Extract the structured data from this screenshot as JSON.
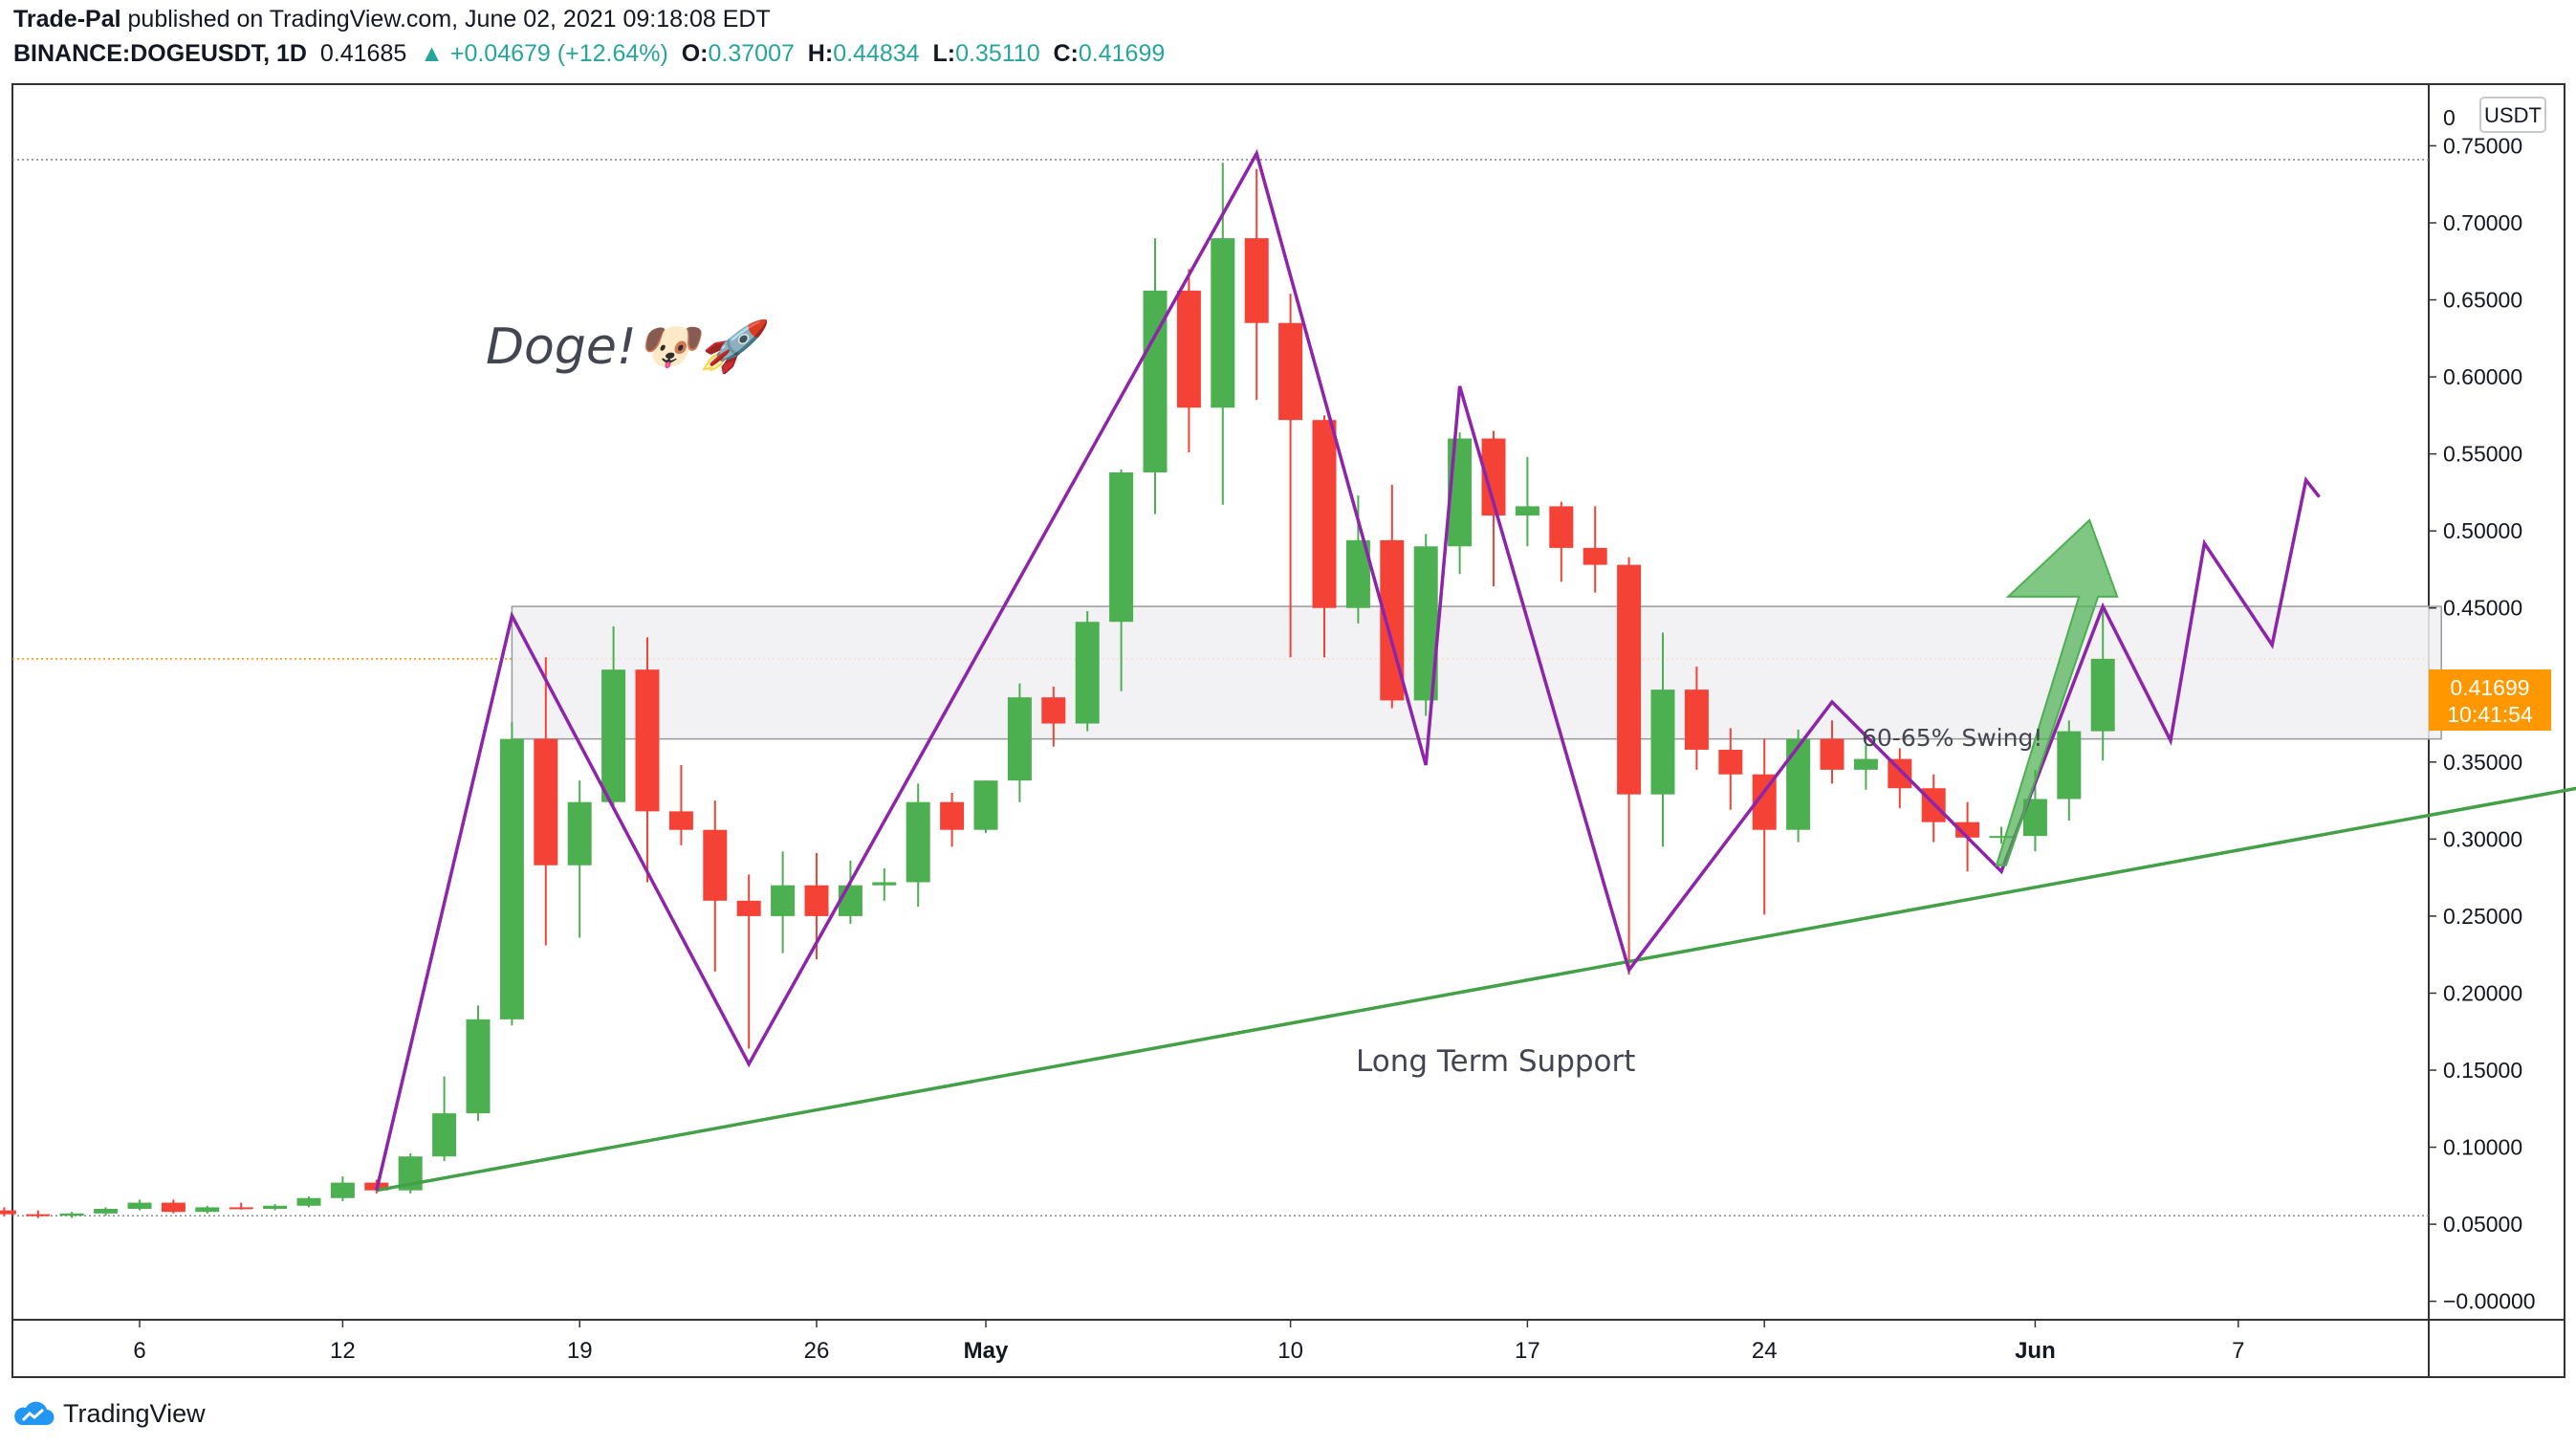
{
  "header": {
    "publisher": "Trade-Pal",
    "published_text": "published on TradingView.com, June 02, 2021 09:18:08 EDT",
    "symbol": "BINANCE:DOGEUSDT, 1D",
    "last": "0.41685",
    "change": "▲ +0.04679 (+12.64%)",
    "o_label": "O:",
    "o": "0.37007",
    "h_label": "H:",
    "h": "0.44834",
    "l_label": "L:",
    "l": "0.35110",
    "c_label": "C:",
    "c": "0.41699"
  },
  "branding": {
    "logo_text": "TradingView",
    "icon": "tradingview-cloud-icon"
  },
  "colors": {
    "up": "#4caf50",
    "down": "#f44336",
    "pattern": "#8e24aa",
    "support": "#43a047",
    "price_tag": "#ff9800",
    "box": "#f0f0f3"
  },
  "chart_data": {
    "type": "candlestick",
    "currency": "USDT",
    "x_ticks": [
      "6",
      "12",
      "19",
      "26",
      "May",
      "10",
      "17",
      "24",
      "Jun",
      "7"
    ],
    "y_ticks": [
      "0.75000",
      "0.70000",
      "0.65000",
      "0.60000",
      "0.55000",
      "0.50000",
      "0.45000",
      "0.35000",
      "0.30000",
      "0.25000",
      "0.20000",
      "0.15000",
      "0.10000",
      "0.05000",
      "−0.00000"
    ],
    "y_top_partial": "0",
    "ylim": [
      -0.012,
      0.79
    ],
    "price_tag": {
      "price": "0.41699",
      "countdown": "10:41:54",
      "value": 0.41699
    },
    "reference_lines": [
      0.741,
      0.0555
    ],
    "current_price_line": 0.41699,
    "candles": [
      {
        "date": "2021-04-02",
        "o": 0.059,
        "h": 0.061,
        "l": 0.055,
        "c": 0.0565
      },
      {
        "date": "2021-04-03",
        "o": 0.0565,
        "h": 0.059,
        "l": 0.054,
        "c": 0.0555
      },
      {
        "date": "2021-04-04",
        "o": 0.0555,
        "h": 0.058,
        "l": 0.054,
        "c": 0.057
      },
      {
        "date": "2021-04-05",
        "o": 0.057,
        "h": 0.061,
        "l": 0.0555,
        "c": 0.06
      },
      {
        "date": "2021-04-06",
        "o": 0.06,
        "h": 0.066,
        "l": 0.059,
        "c": 0.064
      },
      {
        "date": "2021-04-07",
        "o": 0.064,
        "h": 0.066,
        "l": 0.057,
        "c": 0.058
      },
      {
        "date": "2021-04-08",
        "o": 0.058,
        "h": 0.062,
        "l": 0.057,
        "c": 0.061
      },
      {
        "date": "2021-04-09",
        "o": 0.061,
        "h": 0.064,
        "l": 0.0595,
        "c": 0.06
      },
      {
        "date": "2021-04-10",
        "o": 0.06,
        "h": 0.063,
        "l": 0.059,
        "c": 0.062
      },
      {
        "date": "2021-04-11",
        "o": 0.062,
        "h": 0.068,
        "l": 0.061,
        "c": 0.067
      },
      {
        "date": "2021-04-12",
        "o": 0.067,
        "h": 0.081,
        "l": 0.065,
        "c": 0.077
      },
      {
        "date": "2021-04-13",
        "o": 0.077,
        "h": 0.079,
        "l": 0.07,
        "c": 0.072
      },
      {
        "date": "2021-04-14",
        "o": 0.072,
        "h": 0.096,
        "l": 0.07,
        "c": 0.094
      },
      {
        "date": "2021-04-15",
        "o": 0.094,
        "h": 0.146,
        "l": 0.091,
        "c": 0.122
      },
      {
        "date": "2021-04-16",
        "o": 0.122,
        "h": 0.192,
        "l": 0.117,
        "c": 0.183
      },
      {
        "date": "2021-04-17",
        "o": 0.183,
        "h": 0.376,
        "l": 0.179,
        "c": 0.365
      },
      {
        "date": "2021-04-18",
        "o": 0.365,
        "h": 0.418,
        "l": 0.231,
        "c": 0.283
      },
      {
        "date": "2021-04-19",
        "o": 0.283,
        "h": 0.338,
        "l": 0.236,
        "c": 0.324
      },
      {
        "date": "2021-04-20",
        "o": 0.324,
        "h": 0.438,
        "l": 0.32,
        "c": 0.41
      },
      {
        "date": "2021-04-21",
        "o": 0.41,
        "h": 0.431,
        "l": 0.272,
        "c": 0.318
      },
      {
        "date": "2021-04-22",
        "o": 0.318,
        "h": 0.348,
        "l": 0.296,
        "c": 0.306
      },
      {
        "date": "2021-04-23",
        "o": 0.306,
        "h": 0.325,
        "l": 0.214,
        "c": 0.26
      },
      {
        "date": "2021-04-24",
        "o": 0.26,
        "h": 0.277,
        "l": 0.164,
        "c": 0.25
      },
      {
        "date": "2021-04-25",
        "o": 0.25,
        "h": 0.292,
        "l": 0.226,
        "c": 0.27
      },
      {
        "date": "2021-04-26",
        "o": 0.27,
        "h": 0.291,
        "l": 0.222,
        "c": 0.25
      },
      {
        "date": "2021-04-27",
        "o": 0.25,
        "h": 0.286,
        "l": 0.245,
        "c": 0.27
      },
      {
        "date": "2021-04-28",
        "o": 0.27,
        "h": 0.281,
        "l": 0.26,
        "c": 0.272
      },
      {
        "date": "2021-04-29",
        "o": 0.272,
        "h": 0.336,
        "l": 0.256,
        "c": 0.324
      },
      {
        "date": "2021-04-30",
        "o": 0.324,
        "h": 0.33,
        "l": 0.295,
        "c": 0.306
      },
      {
        "date": "2021-05-01",
        "o": 0.306,
        "h": 0.338,
        "l": 0.304,
        "c": 0.338
      },
      {
        "date": "2021-05-02",
        "o": 0.338,
        "h": 0.401,
        "l": 0.324,
        "c": 0.392
      },
      {
        "date": "2021-05-03",
        "o": 0.392,
        "h": 0.399,
        "l": 0.36,
        "c": 0.375
      },
      {
        "date": "2021-05-04",
        "o": 0.375,
        "h": 0.448,
        "l": 0.37,
        "c": 0.441
      },
      {
        "date": "2021-05-05",
        "o": 0.441,
        "h": 0.54,
        "l": 0.396,
        "c": 0.538
      },
      {
        "date": "2021-05-06",
        "o": 0.538,
        "h": 0.69,
        "l": 0.511,
        "c": 0.656
      },
      {
        "date": "2021-05-07",
        "o": 0.656,
        "h": 0.67,
        "l": 0.551,
        "c": 0.58
      },
      {
        "date": "2021-05-08",
        "o": 0.58,
        "h": 0.739,
        "l": 0.517,
        "c": 0.69
      },
      {
        "date": "2021-05-09",
        "o": 0.69,
        "h": 0.735,
        "l": 0.585,
        "c": 0.635
      },
      {
        "date": "2021-05-10",
        "o": 0.635,
        "h": 0.654,
        "l": 0.418,
        "c": 0.572
      },
      {
        "date": "2021-05-11",
        "o": 0.572,
        "h": 0.575,
        "l": 0.418,
        "c": 0.45
      },
      {
        "date": "2021-05-12",
        "o": 0.45,
        "h": 0.523,
        "l": 0.44,
        "c": 0.494
      },
      {
        "date": "2021-05-13",
        "o": 0.494,
        "h": 0.53,
        "l": 0.385,
        "c": 0.39
      },
      {
        "date": "2021-05-14",
        "o": 0.39,
        "h": 0.498,
        "l": 0.38,
        "c": 0.49
      },
      {
        "date": "2021-05-15",
        "o": 0.49,
        "h": 0.564,
        "l": 0.472,
        "c": 0.56
      },
      {
        "date": "2021-05-16",
        "o": 0.56,
        "h": 0.565,
        "l": 0.464,
        "c": 0.51
      },
      {
        "date": "2021-05-17",
        "o": 0.51,
        "h": 0.548,
        "l": 0.49,
        "c": 0.516
      },
      {
        "date": "2021-05-18",
        "o": 0.516,
        "h": 0.519,
        "l": 0.467,
        "c": 0.489
      },
      {
        "date": "2021-05-19",
        "o": 0.489,
        "h": 0.516,
        "l": 0.46,
        "c": 0.478
      },
      {
        "date": "2021-05-20",
        "o": 0.478,
        "h": 0.483,
        "l": 0.212,
        "c": 0.329
      },
      {
        "date": "2021-05-21",
        "o": 0.329,
        "h": 0.434,
        "l": 0.295,
        "c": 0.397
      },
      {
        "date": "2021-05-22",
        "o": 0.397,
        "h": 0.412,
        "l": 0.345,
        "c": 0.358
      },
      {
        "date": "2021-05-23",
        "o": 0.358,
        "h": 0.372,
        "l": 0.319,
        "c": 0.342
      },
      {
        "date": "2021-05-24",
        "o": 0.342,
        "h": 0.365,
        "l": 0.251,
        "c": 0.306
      },
      {
        "date": "2021-05-25",
        "o": 0.306,
        "h": 0.371,
        "l": 0.298,
        "c": 0.365
      },
      {
        "date": "2021-05-26",
        "o": 0.365,
        "h": 0.377,
        "l": 0.336,
        "c": 0.345
      },
      {
        "date": "2021-05-27",
        "o": 0.345,
        "h": 0.361,
        "l": 0.332,
        "c": 0.352
      },
      {
        "date": "2021-05-28",
        "o": 0.352,
        "h": 0.359,
        "l": 0.32,
        "c": 0.333
      },
      {
        "date": "2021-05-29",
        "o": 0.333,
        "h": 0.342,
        "l": 0.298,
        "c": 0.311
      },
      {
        "date": "2021-05-30",
        "o": 0.311,
        "h": 0.324,
        "l": 0.279,
        "c": 0.301
      },
      {
        "date": "2021-05-31",
        "o": 0.301,
        "h": 0.308,
        "l": 0.297,
        "c": 0.302
      },
      {
        "date": "2021-06-01",
        "o": 0.302,
        "h": 0.345,
        "l": 0.292,
        "c": 0.326
      },
      {
        "date": "2021-06-02",
        "o": 0.326,
        "h": 0.377,
        "l": 0.312,
        "c": 0.37
      },
      {
        "date": "2021-06-03",
        "o": 0.37,
        "h": 0.448,
        "l": 0.351,
        "c": 0.417
      }
    ],
    "annotations": {
      "title_text": "Doge!🐶🚀",
      "support_label": "Long Term Support",
      "swing_label": "60-65% Swing!",
      "resistance_zone": {
        "from": "2021-04-17",
        "to": "2021-06-13",
        "low": 0.365,
        "high": 0.451
      },
      "support_line": [
        {
          "date": "2021-04-13",
          "price": 0.072
        },
        {
          "date": "2021-06-19",
          "price": 0.341
        }
      ],
      "pattern_path": [
        {
          "date": "2021-04-13",
          "price": 0.072
        },
        {
          "date": "2021-04-17",
          "price": 0.445
        },
        {
          "date": "2021-04-24",
          "price": 0.154
        },
        {
          "date": "2021-05-09",
          "price": 0.745
        },
        {
          "date": "2021-05-14",
          "price": 0.348
        },
        {
          "date": "2021-05-15",
          "price": 0.594
        },
        {
          "date": "2021-05-20",
          "price": 0.215
        },
        {
          "date": "2021-05-26",
          "price": 0.389
        },
        {
          "date": "2021-05-31",
          "price": 0.279
        },
        {
          "date": "2021-06-03",
          "price": 0.451
        },
        {
          "date": "2021-06-05",
          "price": 0.364
        },
        {
          "date": "2021-06-06",
          "price": 0.492
        },
        {
          "date": "2021-06-08",
          "price": 0.426
        },
        {
          "date": "2021-06-09",
          "price": 0.533
        },
        {
          "date": "2021-06-09",
          "price": 0.522
        }
      ],
      "projection_arrow": {
        "from": {
          "date": "2021-05-31",
          "price": 0.283
        },
        "to": {
          "date": "2021-06-03",
          "price": 0.507
        }
      }
    }
  }
}
